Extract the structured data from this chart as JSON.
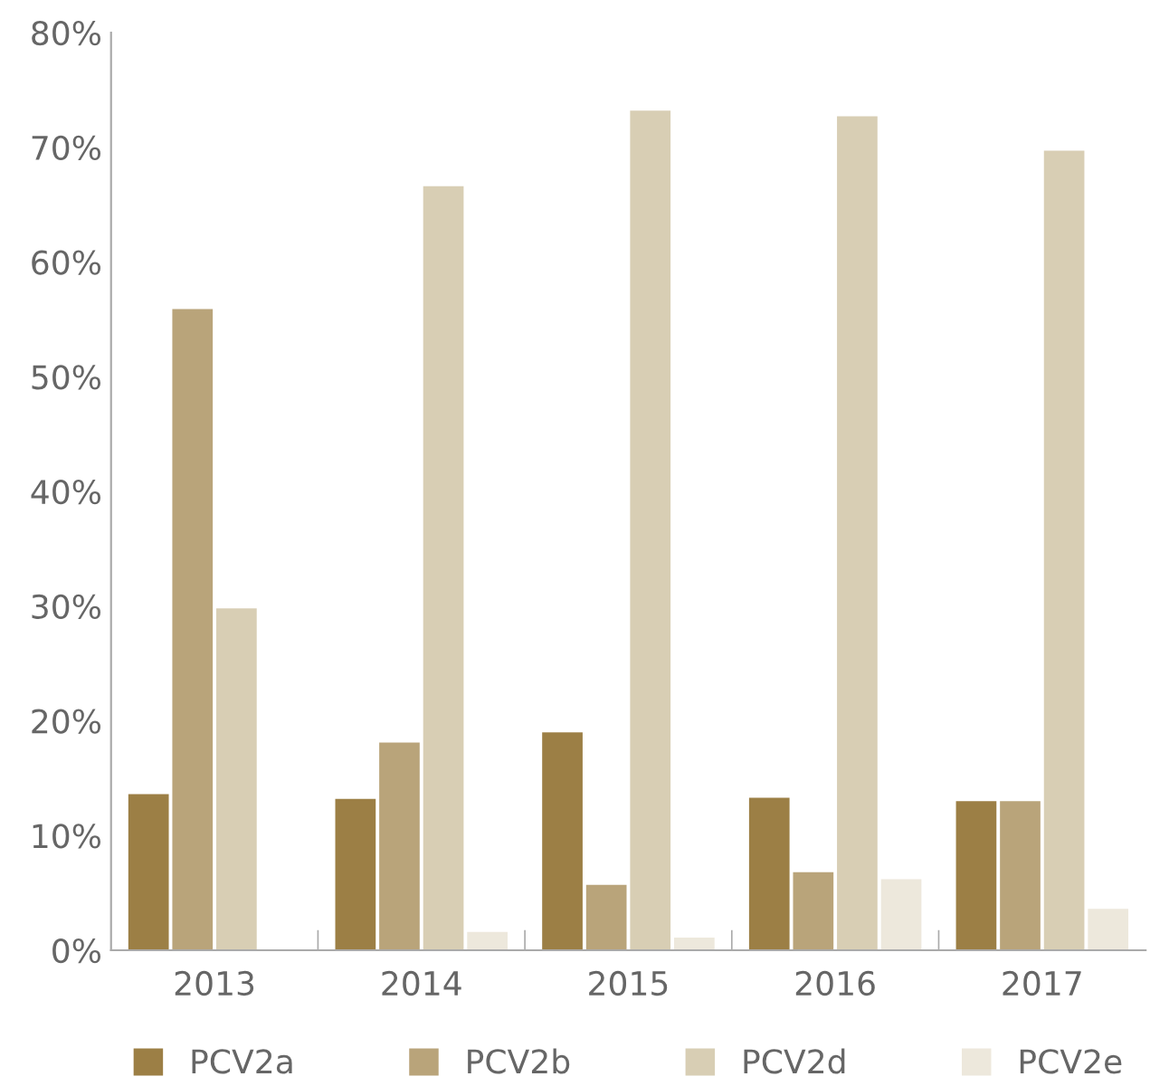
{
  "chart_data": {
    "type": "bar",
    "categories": [
      "2013",
      "2014",
      "2015",
      "2016",
      "2017"
    ],
    "series": [
      {
        "name": "PCV2a",
        "color": "#9c7f45",
        "values": [
          13.6,
          13.2,
          19.0,
          13.3,
          13.0
        ]
      },
      {
        "name": "PCV2b",
        "color": "#b9a47a",
        "values": [
          55.9,
          18.1,
          5.7,
          6.8,
          13.0
        ]
      },
      {
        "name": "PCV2d",
        "color": "#d8ceb4",
        "values": [
          29.8,
          66.6,
          73.2,
          72.7,
          69.7
        ]
      },
      {
        "name": "PCV2e",
        "color": "#ede8dc",
        "values": [
          0,
          1.6,
          1.1,
          6.2,
          3.6
        ]
      }
    ],
    "ylim": [
      0,
      80
    ],
    "yticks": [
      {
        "value": 0,
        "label": "0%"
      },
      {
        "value": 10,
        "label": "10%"
      },
      {
        "value": 20,
        "label": "20%"
      },
      {
        "value": 30,
        "label": "30%"
      },
      {
        "value": 40,
        "label": "40%"
      },
      {
        "value": 50,
        "label": "50%"
      },
      {
        "value": 60,
        "label": "60%"
      },
      {
        "value": 70,
        "label": "70%"
      },
      {
        "value": 80,
        "label": "80%"
      }
    ],
    "grid": false,
    "legend": "bottom"
  }
}
